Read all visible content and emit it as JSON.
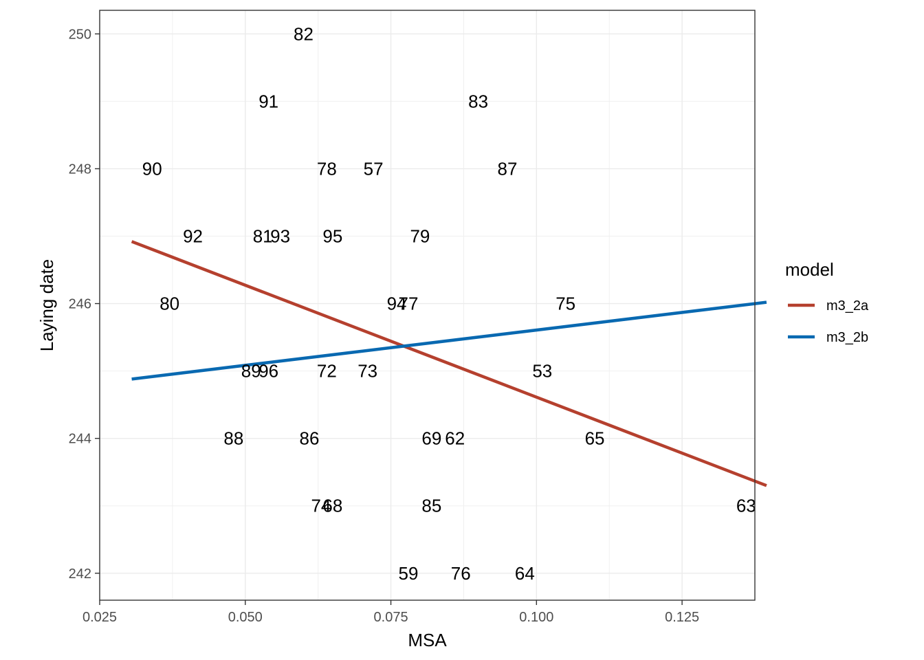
{
  "chart_data": {
    "type": "scatter",
    "xlabel": "MSA",
    "ylabel": "Laying date",
    "xlim": [
      0.025,
      0.1375
    ],
    "ylim": [
      241.6,
      250.35
    ],
    "x_ticks": [
      0.025,
      0.05,
      0.075,
      0.1,
      0.125
    ],
    "x_tick_labels": [
      "0.025",
      "0.050",
      "0.075",
      "0.100",
      "0.125"
    ],
    "y_ticks": [
      242,
      244,
      246,
      248,
      250
    ],
    "y_tick_labels": [
      "242",
      "244",
      "246",
      "248",
      "250"
    ],
    "grid": true,
    "points": [
      {
        "label": "82",
        "x": 0.06,
        "y": 250
      },
      {
        "label": "91",
        "x": 0.054,
        "y": 249
      },
      {
        "label": "83",
        "x": 0.09,
        "y": 249
      },
      {
        "label": "90",
        "x": 0.034,
        "y": 248
      },
      {
        "label": "78",
        "x": 0.064,
        "y": 248
      },
      {
        "label": "57",
        "x": 0.072,
        "y": 248
      },
      {
        "label": "87",
        "x": 0.095,
        "y": 248
      },
      {
        "label": "92",
        "x": 0.041,
        "y": 247
      },
      {
        "label": "81",
        "x": 0.053,
        "y": 247
      },
      {
        "label": "93",
        "x": 0.056,
        "y": 247
      },
      {
        "label": "95",
        "x": 0.065,
        "y": 247
      },
      {
        "label": "79",
        "x": 0.08,
        "y": 247
      },
      {
        "label": "80",
        "x": 0.037,
        "y": 246
      },
      {
        "label": "94",
        "x": 0.076,
        "y": 246
      },
      {
        "label": "77",
        "x": 0.078,
        "y": 246
      },
      {
        "label": "75",
        "x": 0.105,
        "y": 246
      },
      {
        "label": "89",
        "x": 0.051,
        "y": 245
      },
      {
        "label": "96",
        "x": 0.054,
        "y": 245
      },
      {
        "label": "72",
        "x": 0.064,
        "y": 245
      },
      {
        "label": "73",
        "x": 0.071,
        "y": 245
      },
      {
        "label": "53",
        "x": 0.101,
        "y": 245
      },
      {
        "label": "88",
        "x": 0.048,
        "y": 244
      },
      {
        "label": "86",
        "x": 0.061,
        "y": 244
      },
      {
        "label": "69",
        "x": 0.082,
        "y": 244
      },
      {
        "label": "62",
        "x": 0.086,
        "y": 244
      },
      {
        "label": "65",
        "x": 0.11,
        "y": 244
      },
      {
        "label": "74",
        "x": 0.063,
        "y": 243
      },
      {
        "label": "68",
        "x": 0.065,
        "y": 243
      },
      {
        "label": "85",
        "x": 0.082,
        "y": 243
      },
      {
        "label": "63",
        "x": 0.136,
        "y": 243
      },
      {
        "label": "59",
        "x": 0.078,
        "y": 242
      },
      {
        "label": "76",
        "x": 0.087,
        "y": 242
      },
      {
        "label": "64",
        "x": 0.098,
        "y": 242
      }
    ],
    "series": [
      {
        "name": "m3_2a",
        "color": "#B5402E",
        "x": [
          0.0305,
          0.1395
        ],
        "y": [
          246.92,
          243.3
        ]
      },
      {
        "name": "m3_2b",
        "color": "#0969B1",
        "x": [
          0.0305,
          0.1395
        ],
        "y": [
          244.88,
          246.02
        ]
      }
    ],
    "legend": {
      "title": "model",
      "placement": "right",
      "entries": [
        "m3_2a",
        "m3_2b"
      ]
    }
  }
}
